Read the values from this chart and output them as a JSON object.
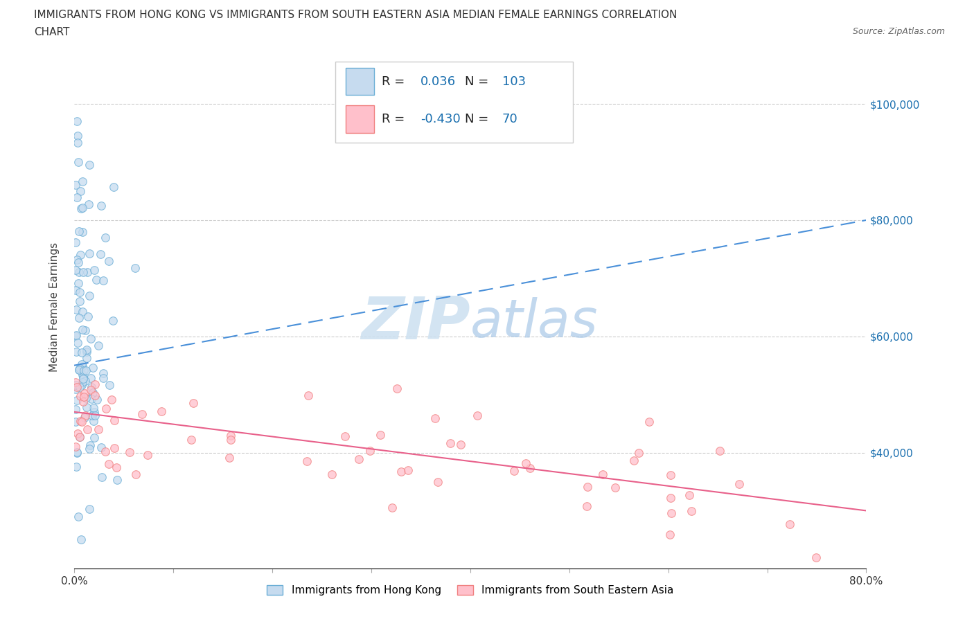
{
  "title_line1": "IMMIGRANTS FROM HONG KONG VS IMMIGRANTS FROM SOUTH EASTERN ASIA MEDIAN FEMALE EARNINGS CORRELATION",
  "title_line2": "CHART",
  "source": "Source: ZipAtlas.com",
  "ylabel": "Median Female Earnings",
  "xmin": 0.0,
  "xmax": 0.8,
  "ymin": 20000,
  "ymax": 110000,
  "yticks": [
    40000,
    60000,
    80000,
    100000
  ],
  "ytick_labels": [
    "$40,000",
    "$60,000",
    "$80,000",
    "$100,000"
  ],
  "legend_label1": "Immigrants from Hong Kong",
  "legend_label2": "Immigrants from South Eastern Asia",
  "R1": 0.036,
  "N1": 103,
  "R2": -0.43,
  "N2": 70,
  "color1_edge": "#6baed6",
  "color1_fill": "#c6dbef",
  "color2_edge": "#f08080",
  "color2_fill": "#ffc0cb",
  "color_blue_line": "#4a90d9",
  "color_pink_line": "#e8608a",
  "color_blue_text": "#1a6faf",
  "watermark_color": "#cce0f0",
  "hk_trend_x0": 0.0,
  "hk_trend_y0": 55000,
  "hk_trend_x1": 0.8,
  "hk_trend_y1": 80000,
  "sea_trend_x0": 0.0,
  "sea_trend_y0": 47000,
  "sea_trend_x1": 0.8,
  "sea_trend_y1": 30000
}
